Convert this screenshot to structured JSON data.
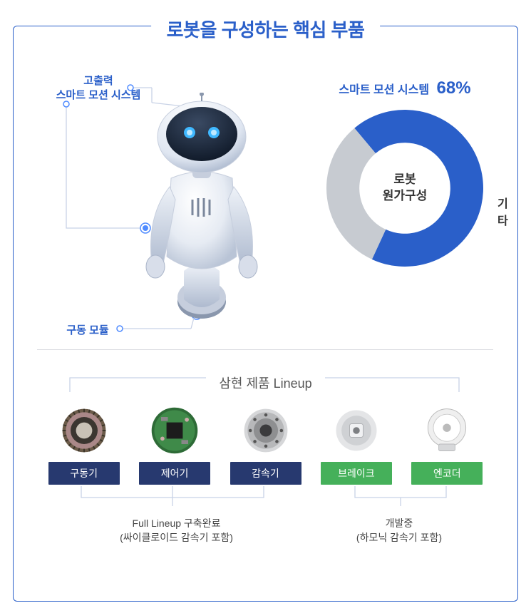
{
  "title": "로봇을 구성하는 핵심 부품",
  "callouts": {
    "top": "고출력\n스마트 모션 시스템",
    "bottom": "구동 모듈"
  },
  "donut": {
    "type": "donut",
    "title_text": "스마트 모션 시스템",
    "percent_label": "68%",
    "center_line1": "로봇",
    "center_line2": "원가구성",
    "other_label": "기타",
    "series": [
      {
        "name": "smart_motion",
        "value": 68,
        "color": "#2a5fc9"
      },
      {
        "name": "other",
        "value": 32,
        "color": "#c7cbd1"
      }
    ],
    "inner_radius": 58,
    "outer_radius": 100,
    "background_color": "#ffffff",
    "title_fontsize": 16,
    "percent_fontsize": 24,
    "center_fontsize": 17,
    "start_angle_deg": -130
  },
  "lineup": {
    "title": "삼현 제품 Lineup",
    "items": [
      {
        "label": "구동기",
        "status": "complete",
        "label_color": "#27396f"
      },
      {
        "label": "제어기",
        "status": "complete",
        "label_color": "#27396f"
      },
      {
        "label": "감속기",
        "status": "complete",
        "label_color": "#27396f"
      },
      {
        "label": "브레이크",
        "status": "dev",
        "label_color": "#45b05a"
      },
      {
        "label": "엔코더",
        "status": "dev",
        "label_color": "#45b05a"
      }
    ],
    "footnote_complete_line1": "Full Lineup 구축완료",
    "footnote_complete_line2": "(싸이클로이드 감속기 포함)",
    "footnote_dev_line1": "개발중",
    "footnote_dev_line2": "(하모닉 감속기 포함)",
    "bracket_color": "#c8d2e6"
  },
  "palette": {
    "frame_border": "#2a5fc9",
    "title_color": "#2a5fc9",
    "callout_color": "#2a5fc9",
    "divider_color": "#dcdde2",
    "bracket_color": "#c8d2e6",
    "text_color": "#333333"
  }
}
